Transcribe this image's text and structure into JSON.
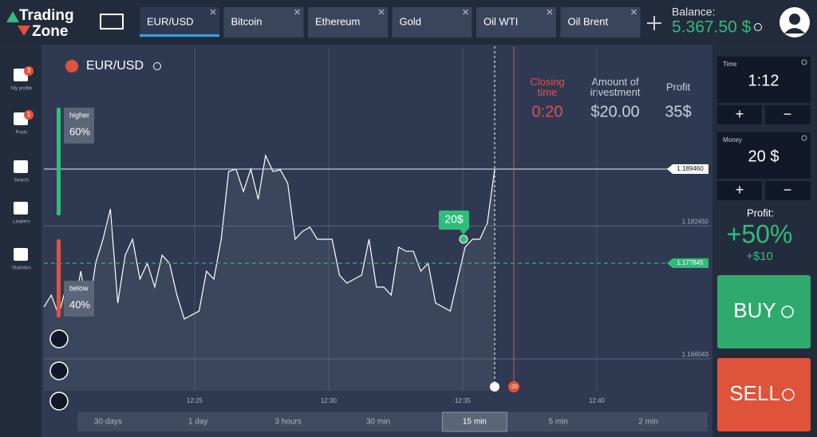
{
  "logo": {
    "line1": "Trading",
    "line2": "Zone"
  },
  "tabs": [
    "EUR/USD",
    "Bitcoin",
    "Ethereum",
    "Gold",
    "Oil WTI",
    "Oil Brent"
  ],
  "balance": {
    "label": "Balance:",
    "value": "5.367.50 $"
  },
  "sidebar": [
    {
      "label": "My profile",
      "badge": "3"
    },
    {
      "label": "Posts",
      "badge": "1"
    },
    {
      "label": "Search"
    },
    {
      "label": "Leaders"
    },
    {
      "label": "Statistics"
    }
  ],
  "asset": "EUR/USD",
  "info": {
    "closing_time": {
      "label": "Closing time",
      "value": "0:20"
    },
    "investment": {
      "label": "Amount of investment",
      "value": "$20.00"
    },
    "profit": {
      "label": "Profit",
      "value": "35$"
    }
  },
  "sentiment": {
    "higher": {
      "label": "higher",
      "value": "60%"
    },
    "below": {
      "label": "below",
      "value": "40%"
    }
  },
  "chart": {
    "type": "line",
    "color": "#ffffff",
    "values": [
      1.17244,
      1.17391,
      1.17145,
      1.1749,
      1.17194,
      1.17686,
      1.17145,
      1.17785,
      1.1808,
      1.18454,
      1.17293,
      1.17883,
      1.1808,
      1.17588,
      1.17785,
      1.1749,
      1.17883,
      1.17785,
      1.17391,
      1.17096,
      1.17145,
      1.17194,
      1.17686,
      1.17588,
      1.1808,
      1.18916,
      1.18946,
      1.1867,
      1.18946,
      1.18572,
      1.19113,
      1.18916,
      1.18936,
      1.18769,
      1.1808,
      1.18178,
      1.18228,
      1.1808,
      1.1808,
      1.1808,
      1.17637,
      1.17539,
      1.17588,
      1.17637,
      1.1808,
      1.1749,
      1.1749,
      1.17391,
      1.17982,
      1.17932,
      1.17932,
      1.17686,
      1.17785,
      1.17293,
      1.17244,
      1.17194,
      1.17588,
      1.17982,
      1.1808,
      1.1808,
      1.18277,
      1.18946
    ],
    "ylim": [
      1.16211,
      1.20441
    ],
    "yticks": [
      {
        "value": 1.18946,
        "label": "1.189460"
      },
      {
        "value": 1.18245,
        "label": "1.182450"
      },
      {
        "value": 1.177845,
        "label": "1.177845"
      },
      {
        "value": 1.166043,
        "label": "1.166043"
      }
    ],
    "xticks": [
      "12:25",
      "12:30",
      "12:35",
      "12:40"
    ],
    "marker": "20$",
    "countdown": ":20"
  },
  "timeframes": {
    "items": [
      "30 days",
      "1 day",
      "3 hours",
      "30 min",
      "15 min",
      "5 min",
      "2 min"
    ],
    "selected": 4
  },
  "panel": {
    "time": {
      "label": "Time",
      "value": "1:12"
    },
    "money": {
      "label": "Money",
      "value": "20 $"
    },
    "plus": "+",
    "minus": "−",
    "profit": {
      "label": "Profit:",
      "value": "+50%",
      "amount": "+$10"
    },
    "buy": "BUY",
    "sell": "SELL"
  }
}
